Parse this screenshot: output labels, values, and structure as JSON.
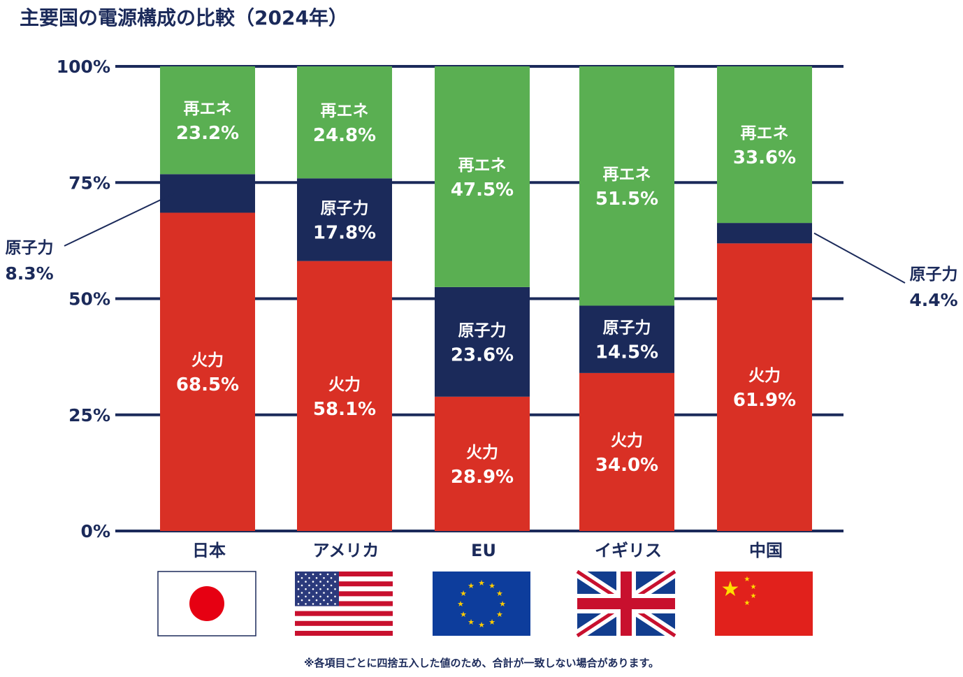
{
  "title": "主要国の電源構成の比較（2024年）",
  "footnote": "※各項目ごとに四捨五入した値のため、合計が一致しない場合があります。",
  "chart_data": {
    "type": "bar",
    "stacked": true,
    "title": "主要国の電源構成の比較（2024年）",
    "categories": [
      "日本",
      "アメリカ",
      "EU",
      "イギリス",
      "中国"
    ],
    "flags": [
      "japan-flag",
      "usa-flag",
      "eu-flag",
      "uk-flag",
      "china-flag"
    ],
    "series": [
      {
        "name": "火力",
        "color": "#d93025",
        "values": [
          68.5,
          58.1,
          28.9,
          34.0,
          61.9
        ]
      },
      {
        "name": "原子力",
        "color": "#1b2a5a",
        "values": [
          8.3,
          17.8,
          23.6,
          14.5,
          4.4
        ]
      },
      {
        "name": "再エネ",
        "color": "#5aaf52",
        "values": [
          23.2,
          24.8,
          47.5,
          51.5,
          33.6
        ]
      }
    ],
    "yticks": [
      "0%",
      "25%",
      "50%",
      "75%",
      "100%"
    ],
    "ylim": [
      0,
      100
    ],
    "grid": true,
    "external_labels": [
      {
        "category": "日本",
        "series": "原子力",
        "side": "left"
      },
      {
        "category": "中国",
        "series": "原子力",
        "side": "right"
      }
    ]
  }
}
